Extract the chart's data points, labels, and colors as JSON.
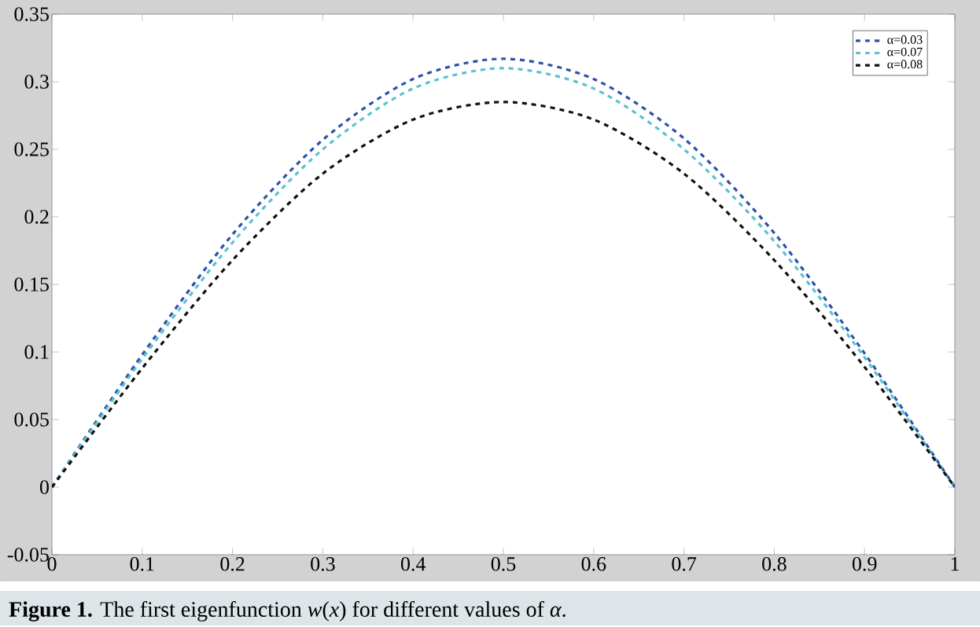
{
  "chart_data": {
    "type": "line",
    "x": [
      0,
      0.1,
      0.2,
      0.3,
      0.4,
      0.5,
      0.6,
      0.7,
      0.8,
      0.9,
      1
    ],
    "series": [
      {
        "name": "α=0.03",
        "color": "#2b52a8",
        "values": [
          0,
          0.098,
          0.187,
          0.257,
          0.302,
          0.317,
          0.302,
          0.258,
          0.188,
          0.099,
          0
        ]
      },
      {
        "name": "α=0.07",
        "color": "#5cc1d2",
        "values": [
          0,
          0.095,
          0.181,
          0.25,
          0.295,
          0.31,
          0.295,
          0.25,
          0.182,
          0.096,
          0
        ]
      },
      {
        "name": "α=0.08",
        "color": "#111111",
        "values": [
          0,
          0.088,
          0.168,
          0.232,
          0.272,
          0.285,
          0.272,
          0.232,
          0.168,
          0.089,
          0
        ]
      }
    ],
    "xlim": [
      0,
      1
    ],
    "ylim": [
      -0.05,
      0.35
    ],
    "xticks": [
      0,
      0.1,
      0.2,
      0.3,
      0.4,
      0.5,
      0.6,
      0.7,
      0.8,
      0.9,
      1
    ],
    "yticks": [
      -0.05,
      0,
      0.05,
      0.1,
      0.15,
      0.2,
      0.25,
      0.3,
      0.35
    ],
    "grid": false,
    "legend": "top right",
    "marker": "none",
    "line_style": "dashed",
    "annotations": [
      "**Figure 1.** The first eigenfunction *w*(*x*) for different values of *α*."
    ]
  }
}
